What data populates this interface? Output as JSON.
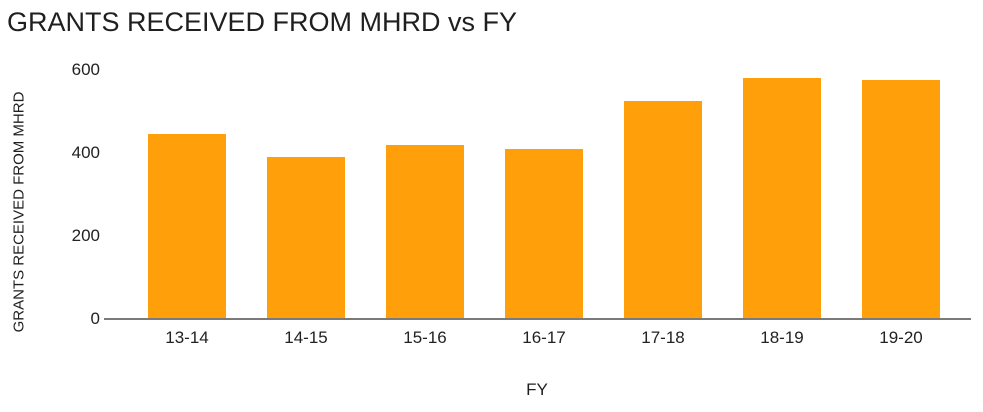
{
  "chart_data": {
    "type": "bar",
    "title": "GRANTS RECEIVED FROM MHRD vs FY",
    "xlabel": "FY",
    "ylabel": "GRANTS RECEIVED FROM MHRD",
    "categories": [
      "13-14",
      "14-15",
      "15-16",
      "16-17",
      "17-18",
      "18-19",
      "19-20"
    ],
    "values": [
      445,
      390,
      420,
      410,
      525,
      580,
      575
    ],
    "ylim": [
      0,
      600
    ],
    "yticks": [
      0,
      200,
      400,
      600
    ],
    "grid": false,
    "legend": false,
    "bar_color": "#FFA00A",
    "axis_line_color": "#7a7a7a",
    "text_color": "#1f1f1f"
  }
}
